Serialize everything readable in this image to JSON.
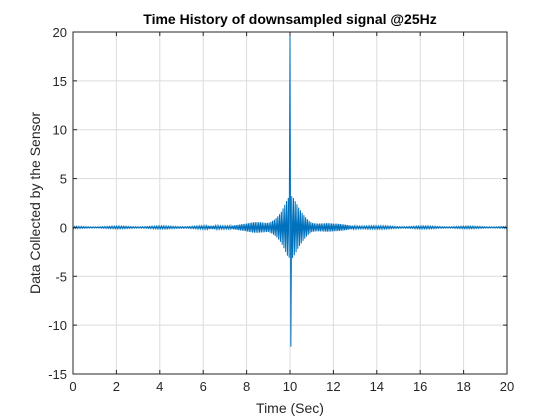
{
  "chart_data": {
    "type": "line",
    "title": "Time History of downsampled signal @25Hz",
    "xlabel": "Time (Sec)",
    "ylabel": "Data Collected by the Sensor",
    "xlim": [
      0,
      20
    ],
    "ylim": [
      -15,
      20
    ],
    "grid": true,
    "sample_rate_hz": 25,
    "x_ticks": [
      0,
      2,
      4,
      6,
      8,
      10,
      12,
      14,
      16,
      18,
      20
    ],
    "y_ticks": [
      -15,
      -10,
      -5,
      0,
      5,
      10,
      15,
      20
    ],
    "series": [
      {
        "color": "#0072bd",
        "peak": {
          "x": 10.0,
          "y": 20
        },
        "trough": {
          "x": 10.0,
          "y": -12.2
        },
        "envelope": [
          {
            "x": 0,
            "amp": 0.1
          },
          {
            "x": 6,
            "amp": 0.15
          },
          {
            "x": 8,
            "amp": 0.4
          },
          {
            "x": 9,
            "amp": 0.9
          },
          {
            "x": 9.6,
            "amp": 2.2
          },
          {
            "x": 9.9,
            "amp": 3.2
          },
          {
            "x": 10.1,
            "amp": 3.2
          },
          {
            "x": 10.4,
            "amp": 2.2
          },
          {
            "x": 11,
            "amp": 0.9
          },
          {
            "x": 12,
            "amp": 0.4
          },
          {
            "x": 14,
            "amp": 0.15
          },
          {
            "x": 20,
            "amp": 0.1
          }
        ]
      }
    ]
  }
}
